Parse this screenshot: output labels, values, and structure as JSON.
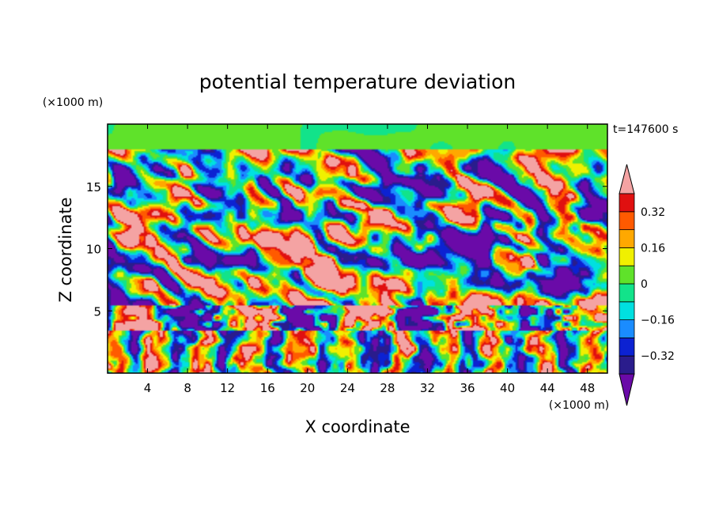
{
  "chart_data": {
    "type": "heatmap",
    "title": "potential temperature deviation",
    "time_label": "t=147600 s",
    "xlabel": "X coordinate",
    "ylabel": "Z coordinate",
    "x_unit": "(×1000 m)",
    "y_unit": "(×1000 m)",
    "xlim": [
      0,
      50
    ],
    "ylim": [
      0,
      20
    ],
    "x_ticks": [
      4,
      8,
      12,
      16,
      20,
      24,
      28,
      32,
      36,
      40,
      44,
      48
    ],
    "y_ticks": [
      5,
      10,
      15
    ],
    "colorbar": {
      "labeled_ticks": [
        0.32,
        0.16,
        0,
        -0.16,
        -0.32
      ],
      "levels": [
        -0.4,
        -0.32,
        -0.24,
        -0.16,
        -0.08,
        0,
        0.08,
        0.16,
        0.24,
        0.32,
        0.4
      ],
      "colors": [
        "#6a0aa8",
        "#2a1c8c",
        "#0c22d2",
        "#1a8cff",
        "#00e0e0",
        "#12e38a",
        "#5fe22a",
        "#f0f000",
        "#ffa800",
        "#ff5a00",
        "#e01010",
        "#f4a3a3"
      ],
      "extend": "both"
    }
  }
}
